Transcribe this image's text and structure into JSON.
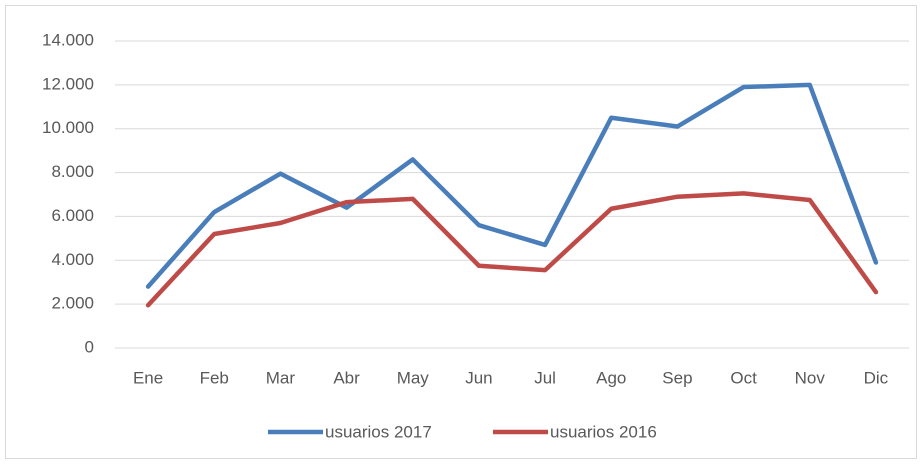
{
  "chart_data": {
    "type": "line",
    "categories": [
      "Ene",
      "Feb",
      "Mar",
      "Abr",
      "May",
      "Jun",
      "Jul",
      "Ago",
      "Sep",
      "Oct",
      "Nov",
      "Dic"
    ],
    "series": [
      {
        "name": "usuarios 2017",
        "color": "#4a7ebb",
        "values": [
          2800,
          6200,
          7950,
          6400,
          8600,
          5600,
          4700,
          10500,
          10100,
          11900,
          12000,
          3900
        ]
      },
      {
        "name": "usuarios 2016",
        "color": "#be4b48",
        "values": [
          1950,
          5200,
          5700,
          6650,
          6800,
          3750,
          3550,
          6350,
          6900,
          7050,
          6750,
          2550
        ]
      }
    ],
    "ylim": [
      0,
      14000
    ],
    "yticks": [
      0,
      {
        "value": 2000,
        "label": "2.000"
      },
      {
        "value": 4000,
        "label": "4.000"
      },
      {
        "value": 6000,
        "label": "6.000"
      },
      {
        "value": 8000,
        "label": "8.000"
      },
      {
        "value": 10000,
        "label": "10.000"
      },
      {
        "value": 12000,
        "label": "12.000"
      },
      {
        "value": 14000,
        "label": "14.000"
      }
    ],
    "grid": true,
    "legend": "bottom"
  }
}
